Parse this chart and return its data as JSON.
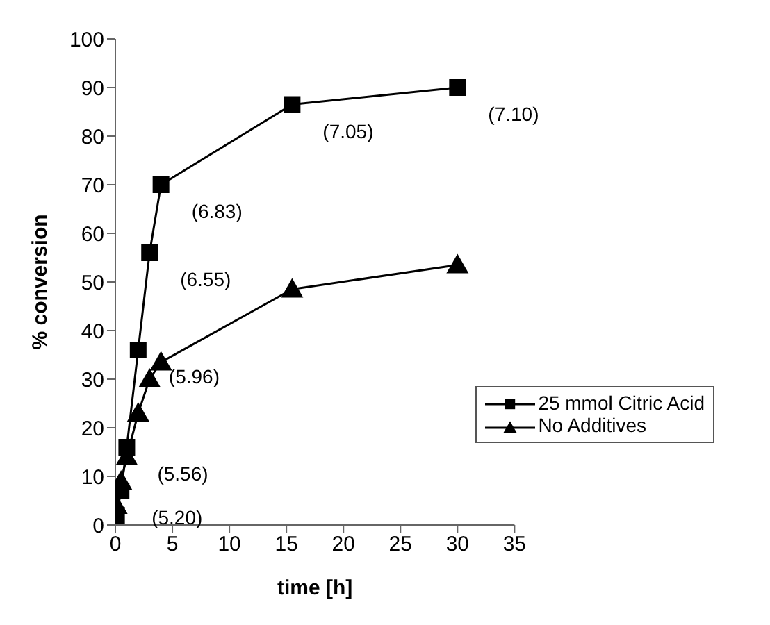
{
  "chart_data": {
    "type": "line",
    "xlabel": "time [h]",
    "ylabel": "% conversion",
    "xlim": [
      0,
      35
    ],
    "xticks": [
      0,
      5,
      10,
      15,
      20,
      25,
      30,
      35
    ],
    "ylim": [
      0,
      100
    ],
    "yticks": [
      0,
      10,
      20,
      30,
      40,
      50,
      60,
      70,
      80,
      90,
      100
    ],
    "grid": false,
    "legend": "right",
    "series": [
      {
        "name": "25 mmol Citric Acid",
        "color": "#000000",
        "marker": "square",
        "x": [
          0.1,
          0.5,
          1,
          2,
          3,
          4,
          15.5,
          30
        ],
        "values": [
          2,
          7,
          16,
          36,
          56,
          70,
          86.5,
          90
        ]
      },
      {
        "name": "No Additives",
        "color": "#000000",
        "marker": "triangle",
        "x": [
          0.1,
          0.5,
          1,
          2,
          3,
          4,
          15.5,
          30
        ],
        "values": [
          4,
          9,
          14,
          23,
          30,
          33.5,
          48.5,
          53.5
        ]
      }
    ],
    "annotations": [
      {
        "text": "(5.20)",
        "x": 0.5,
        "y": 7
      },
      {
        "text": "(5.56)",
        "x": 1,
        "y": 16
      },
      {
        "text": "(5.96)",
        "x": 2,
        "y": 36
      },
      {
        "text": "(6.55)",
        "x": 3,
        "y": 56
      },
      {
        "text": "(6.83)",
        "x": 4,
        "y": 70
      },
      {
        "text": "(7.05)",
        "x": 15.5,
        "y": 86.5
      },
      {
        "text": "(7.10)",
        "x": 30,
        "y": 90
      }
    ]
  }
}
